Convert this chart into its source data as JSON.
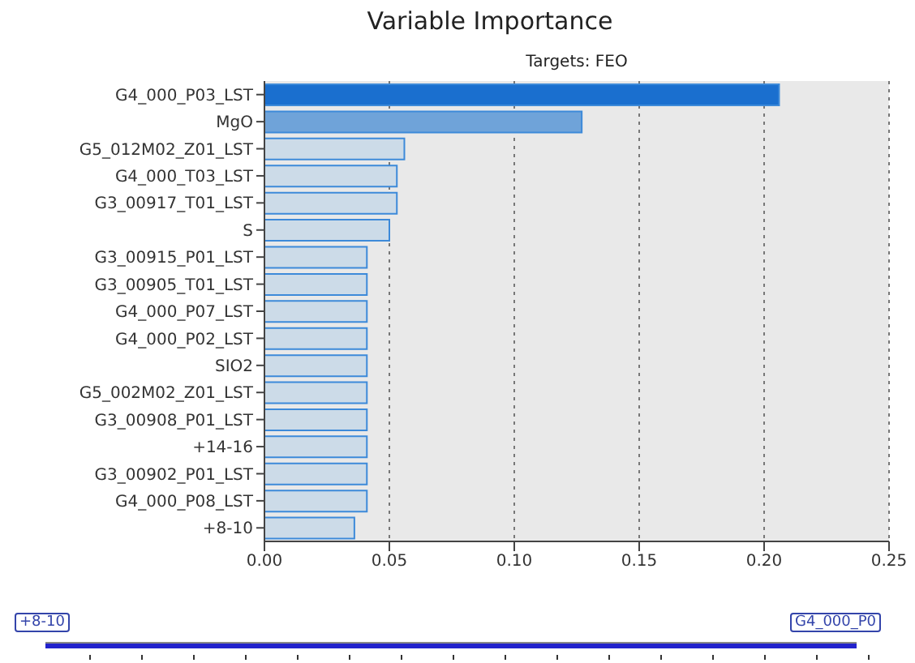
{
  "chart_data": {
    "type": "bar",
    "orientation": "horizontal",
    "title": "Variable Importance",
    "subtitle": "Targets: FEO",
    "categories": [
      "G4_000_P03_LST",
      "MgO",
      "G5_012M02_Z01_LST",
      "G4_000_T03_LST",
      "G3_00917_T01_LST",
      "S",
      "G3_00915_P01_LST",
      "G3_00905_T01_LST",
      "G4_000_P07_LST",
      "G4_000_P02_LST",
      "SIO2",
      "G5_002M02_Z01_LST",
      "G3_00908_P01_LST",
      "+14-16",
      "G3_00902_P01_LST",
      "G4_000_P08_LST",
      "+8-10"
    ],
    "values": [
      0.206,
      0.127,
      0.056,
      0.053,
      0.053,
      0.05,
      0.041,
      0.041,
      0.041,
      0.041,
      0.041,
      0.041,
      0.041,
      0.041,
      0.041,
      0.041,
      0.036
    ],
    "colors": [
      "#1a6fcf",
      "#6fa3d9",
      "#ccdbe8",
      "#ccdbe8",
      "#ccdbe8",
      "#ccdbe8",
      "#ccdbe8",
      "#ccdbe8",
      "#ccdbe8",
      "#ccdbe8",
      "#ccdbe8",
      "#ccdbe8",
      "#ccdbe8",
      "#ccdbe8",
      "#ccdbe8",
      "#ccdbe8",
      "#ccdbe8"
    ],
    "xlim": [
      0,
      0.25
    ],
    "xticks": [
      {
        "value": 0,
        "label": "0.00"
      },
      {
        "value": 0.05,
        "label": "0.05"
      },
      {
        "value": 0.1,
        "label": "0.10"
      },
      {
        "value": 0.15,
        "label": "0.15"
      },
      {
        "value": 0.2,
        "label": "0.20"
      },
      {
        "value": 0.25,
        "label": "0.25"
      }
    ],
    "grid": "x",
    "legend": false,
    "annotations": [
      "+8-10",
      "G4_000_P0"
    ]
  }
}
